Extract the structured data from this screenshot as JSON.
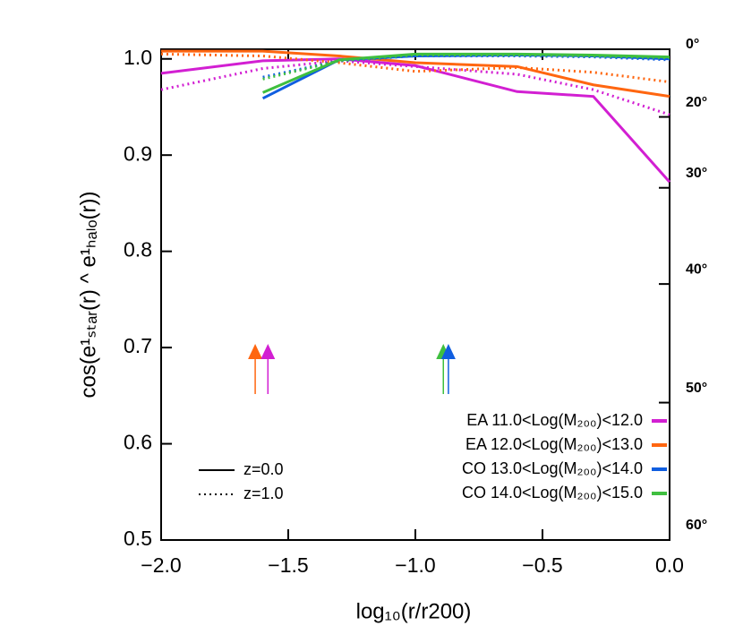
{
  "chart_data": {
    "type": "line",
    "x_label": "log₁₀(r/r200)",
    "y_label": "cos(e¹ₛₜₐᵣ(r) ^ e¹ₕₐₗₒ(r))",
    "x": [
      -2,
      -1.6,
      -1.3,
      -1,
      -0.6,
      -0.3,
      0
    ],
    "xlim": [
      -2,
      0
    ],
    "xticks": [
      {
        "value": -2,
        "label": "−2.0"
      },
      {
        "value": -1.5,
        "label": "−1.5"
      },
      {
        "value": -1,
        "label": "−1.0"
      },
      {
        "value": -0.5,
        "label": "−0.5"
      },
      {
        "value": 0,
        "label": "0.0"
      }
    ],
    "ylim": [
      0.5,
      1.01
    ],
    "yticks": [
      {
        "value": 0.5,
        "label": "0.5"
      },
      {
        "value": 0.6,
        "label": "0.6"
      },
      {
        "value": 0.7,
        "label": "0.7"
      },
      {
        "value": 0.8,
        "label": "0.8"
      },
      {
        "value": 0.9,
        "label": "0.9"
      },
      {
        "value": 1,
        "label": "1.0"
      }
    ],
    "y2scale": "arccos-degrees",
    "y2ticks": [
      {
        "value": 0,
        "label": "0°"
      },
      {
        "value": 20,
        "label": "20°"
      },
      {
        "value": 30,
        "label": "30°"
      },
      {
        "value": 40,
        "label": "40°"
      },
      {
        "value": 50,
        "label": "50°"
      },
      {
        "value": 60,
        "label": "60°"
      }
    ],
    "line_styles": [
      {
        "label": "z=0.0",
        "style": "solid"
      },
      {
        "label": "z=1.0",
        "style": "dotted"
      }
    ],
    "legend": "lower right",
    "series": [
      {
        "name": "EA  11.0<Log(M₂₀₀)<12.0",
        "color": "#d21fd2",
        "lines": [
          [
            0.985,
            0.998,
            1.0,
            0.993,
            0.966,
            0.961,
            0.872
          ],
          [
            0.968,
            0.99,
            0.998,
            0.992,
            0.984,
            0.968,
            0.942
          ]
        ]
      },
      {
        "name": "EA  12.0<Log(M₂₀₀)<13.0",
        "color": "#ff6610",
        "lines": [
          [
            1.008,
            1.008,
            1.003,
            0.996,
            0.992,
            0.973,
            0.961
          ],
          [
            1.005,
            1.003,
            0.996,
            0.987,
            0.991,
            0.986,
            0.976
          ]
        ]
      },
      {
        "name": "CO  13.0<Log(M₂₀₀)<14.0",
        "color": "#105ee0",
        "lines": [
          [
            null,
            0.959,
            0.999,
            1.003,
            1.004,
            1.003,
            1.0
          ],
          [
            null,
            0.981,
            0.998,
            1.003,
            1.003,
            1.002,
            0.999
          ]
        ]
      },
      {
        "name": "CO  14.0<Log(M₂₀₀)<15.0",
        "color": "#3fbf3f",
        "lines": [
          [
            null,
            0.965,
            0.999,
            1.005,
            1.005,
            1.004,
            1.002
          ],
          [
            null,
            0.979,
            0.998,
            1.004,
            1.004,
            1.003,
            1.001
          ]
        ]
      }
    ],
    "arrows": [
      {
        "x": -1.63,
        "series": 1
      },
      {
        "x": -1.58,
        "series": 0
      },
      {
        "x": -0.89,
        "series": 3
      },
      {
        "x": -0.87,
        "series": 2
      }
    ]
  }
}
